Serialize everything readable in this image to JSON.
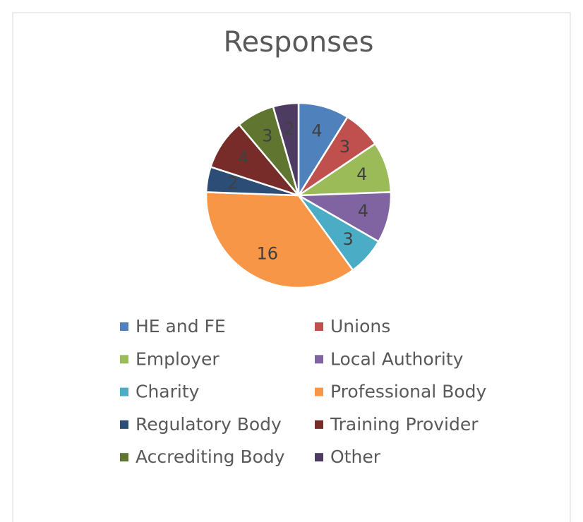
{
  "chart_data": {
    "type": "pie",
    "title": "Responses",
    "categories": [
      "HE and FE",
      "Unions",
      "Employer",
      "Local Authority",
      "Charity",
      "Professional Body",
      "Regulatory Body",
      "Training Provider",
      "Accrediting Body",
      "Other"
    ],
    "values": [
      4,
      3,
      4,
      4,
      3,
      16,
      2,
      4,
      3,
      2
    ],
    "colors": [
      "#4f81bd",
      "#c0504d",
      "#9bbb59",
      "#8064a2",
      "#4bacc6",
      "#f79646",
      "#2c4d75",
      "#772c2a",
      "#5f7530",
      "#4d3b62"
    ],
    "legend": "bottom"
  }
}
